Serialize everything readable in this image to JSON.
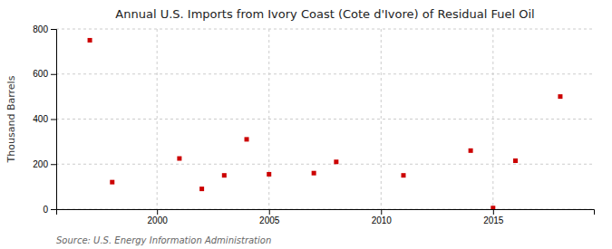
{
  "chart_data": {
    "type": "scatter",
    "title": "Annual U.S. Imports from Ivory Coast (Cote d'Ivore) of Residual Fuel Oil",
    "ylabel": "Thousand Barrels",
    "source": "Source: U.S. Energy Information Administration",
    "x": [
      1997,
      1998,
      2001,
      2002,
      2003,
      2004,
      2005,
      2007,
      2008,
      2011,
      2014,
      2015,
      2016,
      2018
    ],
    "values": [
      750,
      120,
      225,
      90,
      150,
      310,
      155,
      160,
      210,
      150,
      260,
      5,
      215,
      500
    ],
    "color": "#cc0000",
    "marker": "square",
    "xlim": [
      1995.5,
      2019.5
    ],
    "xticks": [
      2000,
      2005,
      2010,
      2015
    ],
    "ylim": [
      0,
      800
    ],
    "yticks": [
      0,
      200,
      400,
      600,
      800
    ],
    "grid": true
  }
}
